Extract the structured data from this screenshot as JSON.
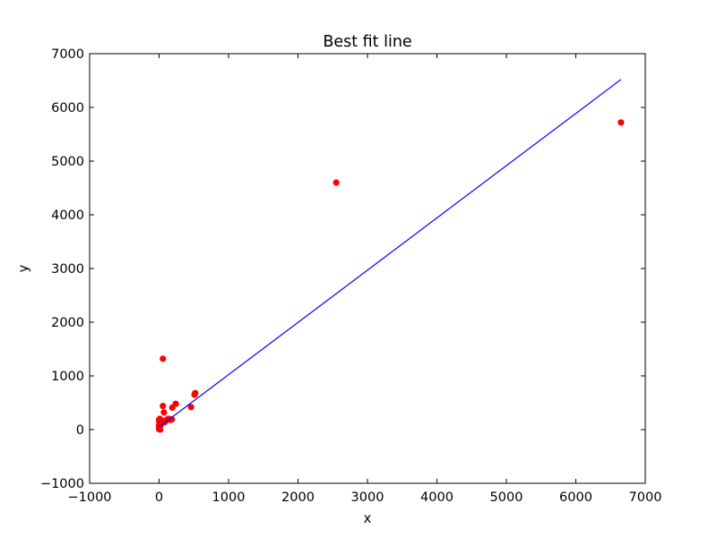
{
  "chart_data": {
    "type": "scatter",
    "title": "Best fit line",
    "xlabel": "x",
    "ylabel": "y",
    "xlim": [
      -1000,
      7000
    ],
    "ylim": [
      -1000,
      7000
    ],
    "xticks": [
      -1000,
      0,
      1000,
      2000,
      3000,
      4000,
      5000,
      6000,
      7000
    ],
    "yticks": [
      -1000,
      0,
      1000,
      2000,
      3000,
      4000,
      5000,
      6000,
      7000
    ],
    "xtick_labels": [
      "−1000",
      "0",
      "1000",
      "2000",
      "3000",
      "4000",
      "5000",
      "6000",
      "7000"
    ],
    "ytick_labels": [
      "−1000",
      "0",
      "1000",
      "2000",
      "3000",
      "4000",
      "5000",
      "6000",
      "7000"
    ],
    "grid": false,
    "series": [
      {
        "kind": "points",
        "color": "#ff0000",
        "points": [
          [
            6650,
            5720
          ],
          [
            2550,
            4600
          ],
          [
            55,
            1320
          ],
          [
            520,
            680
          ],
          [
            510,
            650
          ],
          [
            240,
            480
          ],
          [
            190,
            410
          ],
          [
            460,
            420
          ],
          [
            55,
            440
          ],
          [
            70,
            320
          ],
          [
            120,
            190
          ],
          [
            100,
            170
          ],
          [
            185,
            190
          ],
          [
            160,
            180
          ],
          [
            40,
            160
          ],
          [
            25,
            180
          ],
          [
            10,
            200
          ],
          [
            0,
            180
          ],
          [
            5,
            140
          ],
          [
            20,
            120
          ],
          [
            30,
            100
          ],
          [
            0,
            80
          ],
          [
            5,
            60
          ],
          [
            0,
            40
          ],
          [
            10,
            20
          ],
          [
            0,
            10
          ],
          [
            15,
            0
          ],
          [
            50,
            150
          ],
          [
            80,
            140
          ],
          [
            140,
            200
          ]
        ]
      },
      {
        "kind": "line",
        "color": "#0000ff",
        "points": [
          [
            0,
            50
          ],
          [
            6650,
            6520
          ]
        ]
      }
    ]
  }
}
